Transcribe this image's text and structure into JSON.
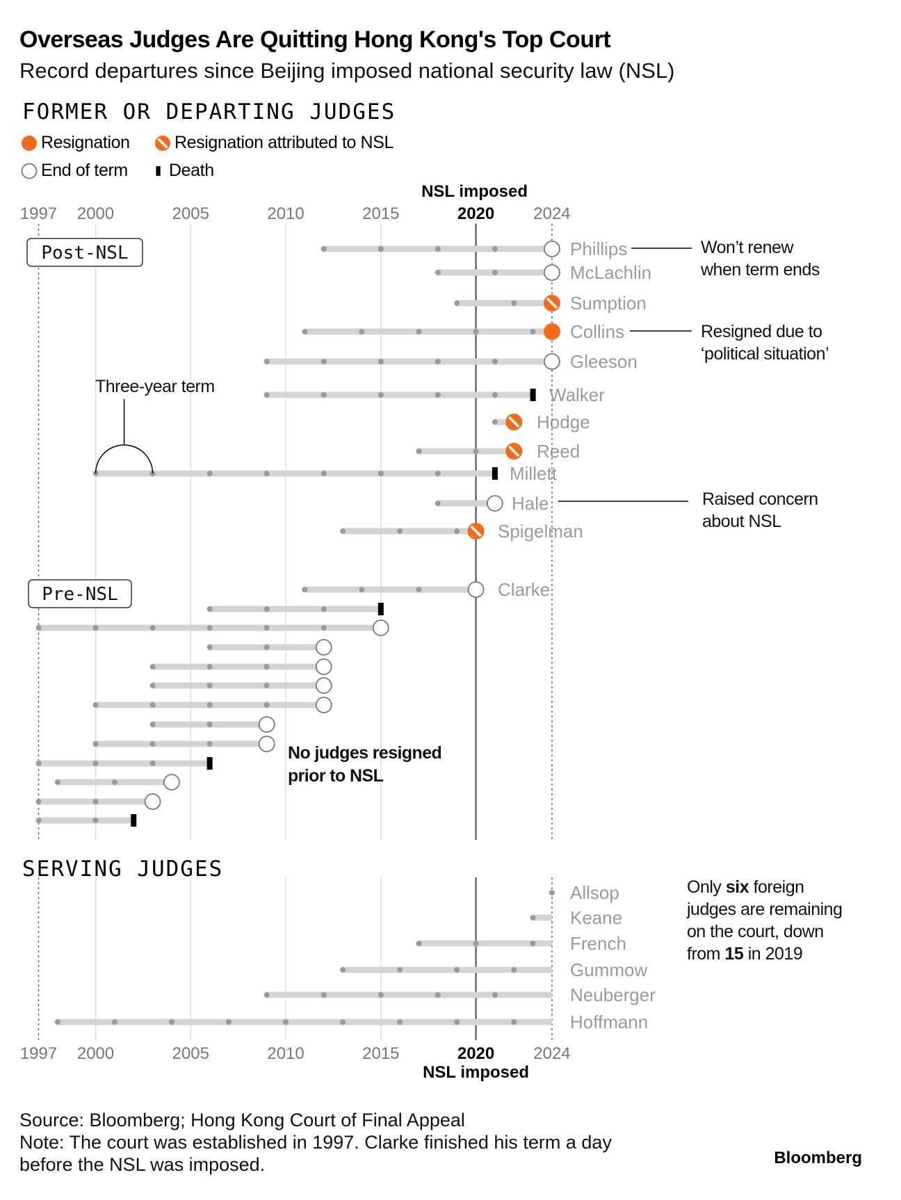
{
  "title": "Overseas Judges Are Quitting Hong Kong's Top Court",
  "subtitle": "Record departures since Beijing imposed national security law (NSL)",
  "sections": {
    "former": "FORMER OR DEPARTING JUDGES",
    "serving": "SERVING JUDGES"
  },
  "legend": {
    "resignation": "Resignation",
    "resignation_nsl": "Resignation attributed to NSL",
    "end_of_term": "End of term",
    "death": "Death"
  },
  "colors": {
    "orange": "#f26a1b",
    "bar": "#d4d4d4",
    "dot": "#9a9a9a",
    "grid": "#dddddd",
    "name": "#9a9a9a",
    "nsl_line": "#444444"
  },
  "chart_data": {
    "type": "timeline",
    "x_unit": "year",
    "xlim": [
      1997,
      2024
    ],
    "x_ticks": [
      {
        "value": 1997,
        "label": "1997"
      },
      {
        "value": 2000,
        "label": "2000"
      },
      {
        "value": 2005,
        "label": "2005"
      },
      {
        "value": 2010,
        "label": "2010"
      },
      {
        "value": 2015,
        "label": "2015"
      },
      {
        "value": 2020,
        "label": "2020"
      },
      {
        "value": 2024,
        "label": "2024"
      }
    ],
    "nsl_year": 2020,
    "nsl_label": "NSL imposed",
    "groups": [
      {
        "id": "post",
        "label": "Post-NSL",
        "judges": [
          {
            "name": "Phillips",
            "start": 2012,
            "end": 2024,
            "outcome": "end_of_term"
          },
          {
            "name": "McLachlin",
            "start": 2018,
            "end": 2024,
            "outcome": "end_of_term"
          },
          {
            "name": "Sumption",
            "start": 2019,
            "end": 2024,
            "outcome": "resignation_nsl"
          },
          {
            "name": "Collins",
            "start": 2011,
            "end": 2024,
            "outcome": "resignation"
          },
          {
            "name": "Gleeson",
            "start": 2009,
            "end": 2024,
            "outcome": "end_of_term"
          },
          {
            "name": "Walker",
            "start": 2009,
            "end": 2023,
            "outcome": "death"
          },
          {
            "name": "Hodge",
            "start": 2021,
            "end": 2022,
            "outcome": "resignation_nsl"
          },
          {
            "name": "Reed",
            "start": 2017,
            "end": 2022,
            "outcome": "resignation_nsl"
          },
          {
            "name": "Millett",
            "start": 2000,
            "end": 2021,
            "outcome": "death"
          },
          {
            "name": "Hale",
            "start": 2018,
            "end": 2021,
            "outcome": "end_of_term"
          },
          {
            "name": "Spigelman",
            "start": 2013,
            "end": 2020,
            "outcome": "resignation_nsl"
          },
          {
            "name": "Clarke",
            "start": 2011,
            "end": 2020,
            "outcome": "end_of_term"
          }
        ]
      },
      {
        "id": "pre",
        "label": "Pre-NSL",
        "judges": [
          {
            "name": "",
            "start": 2006,
            "end": 2015,
            "outcome": "death"
          },
          {
            "name": "",
            "start": 1997,
            "end": 2015,
            "outcome": "end_of_term"
          },
          {
            "name": "",
            "start": 2006,
            "end": 2012,
            "outcome": "end_of_term"
          },
          {
            "name": "",
            "start": 2003,
            "end": 2012,
            "outcome": "end_of_term"
          },
          {
            "name": "",
            "start": 2003,
            "end": 2012,
            "outcome": "end_of_term"
          },
          {
            "name": "",
            "start": 2000,
            "end": 2012,
            "outcome": "end_of_term"
          },
          {
            "name": "",
            "start": 2003,
            "end": 2009,
            "outcome": "end_of_term"
          },
          {
            "name": "",
            "start": 2000,
            "end": 2009,
            "outcome": "end_of_term"
          },
          {
            "name": "",
            "start": 1997,
            "end": 2006,
            "outcome": "death"
          },
          {
            "name": "",
            "start": 1998,
            "end": 2004,
            "outcome": "end_of_term"
          },
          {
            "name": "",
            "start": 1997,
            "end": 2003,
            "outcome": "end_of_term"
          },
          {
            "name": "",
            "start": 1997,
            "end": 2002,
            "outcome": "death"
          }
        ]
      },
      {
        "id": "serving",
        "label": "SERVING JUDGES",
        "judges": [
          {
            "name": "Allsop",
            "start": 2024,
            "end": 2024,
            "outcome": "serving"
          },
          {
            "name": "Keane",
            "start": 2023,
            "end": 2024,
            "outcome": "serving"
          },
          {
            "name": "French",
            "start": 2017,
            "end": 2024,
            "outcome": "serving"
          },
          {
            "name": "Gummow",
            "start": 2013,
            "end": 2024,
            "outcome": "serving"
          },
          {
            "name": "Neuberger",
            "start": 2009,
            "end": 2024,
            "outcome": "serving"
          },
          {
            "name": "Hoffmann",
            "start": 1998,
            "end": 2024,
            "outcome": "serving"
          }
        ]
      }
    ],
    "annotations": [
      {
        "id": "phillips",
        "lines": [
          "Won’t renew",
          "when term ends"
        ],
        "target": "Phillips"
      },
      {
        "id": "collins",
        "lines": [
          "Resigned due to",
          "‘political situation’"
        ],
        "target": "Collins"
      },
      {
        "id": "hale",
        "lines": [
          "Raised concern",
          "about NSL"
        ],
        "target": "Hale"
      },
      {
        "id": "term",
        "lines": [
          "Three-year term"
        ],
        "target": "Millett"
      },
      {
        "id": "noresign",
        "lines": [
          "No judges resigned",
          "prior to NSL"
        ],
        "target": "Pre-NSL"
      },
      {
        "id": "six",
        "segments": [
          [
            "Only ",
            "six",
            " foreign"
          ],
          [
            "judges are remaining"
          ],
          [
            "on the court, down"
          ],
          [
            "from ",
            "15",
            " in 2019"
          ]
        ],
        "target": "Serving"
      }
    ]
  },
  "footer": {
    "source": "Source: Bloomberg; Hong Kong Court of Final Appeal",
    "note1": "Note: The court was established in 1997. Clarke finished his term a day",
    "note2": "before the NSL was imposed.",
    "brand": "Bloomberg"
  }
}
